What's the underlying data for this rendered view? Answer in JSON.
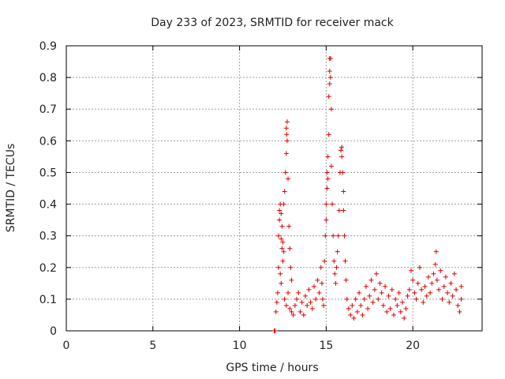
{
  "chart_data": {
    "type": "scatter",
    "title": "Day 233 of 2023, SRMTID for receiver mack",
    "xlabel": "GPS time / hours",
    "ylabel": "SRMTID / TECUs",
    "xlim": [
      0,
      24
    ],
    "ylim": [
      0,
      0.9
    ],
    "xticks": [
      0,
      5,
      10,
      15,
      20
    ],
    "yticks": [
      0,
      0.1,
      0.2,
      0.3,
      0.4,
      0.5,
      0.6,
      0.7,
      0.8,
      0.9
    ],
    "xtick_labels": [
      "0",
      "5",
      "10",
      "15",
      "20"
    ],
    "ytick_labels": [
      "0",
      "0.1",
      "0.2",
      "0.3",
      "0.4",
      "0.5",
      "0.6",
      "0.7",
      "0.8",
      "0.9"
    ],
    "grid": true,
    "marker": "+",
    "color": "#e00000",
    "series": [
      {
        "name": "SRMTID",
        "points": [
          [
            12.0,
            0.0
          ],
          [
            12.05,
            0.0
          ],
          [
            12.1,
            0.06
          ],
          [
            12.15,
            0.09
          ],
          [
            12.2,
            0.12
          ],
          [
            12.25,
            0.2
          ],
          [
            12.25,
            0.3
          ],
          [
            12.3,
            0.35
          ],
          [
            12.3,
            0.38
          ],
          [
            12.35,
            0.4
          ],
          [
            12.4,
            0.37
          ],
          [
            12.45,
            0.33
          ],
          [
            12.5,
            0.28
          ],
          [
            12.55,
            0.25
          ],
          [
            12.4,
            0.29
          ],
          [
            12.45,
            0.26
          ],
          [
            12.5,
            0.22
          ],
          [
            12.35,
            0.18
          ],
          [
            12.4,
            0.15
          ],
          [
            12.55,
            0.4
          ],
          [
            12.6,
            0.44
          ],
          [
            12.65,
            0.5
          ],
          [
            12.7,
            0.56
          ],
          [
            12.7,
            0.64
          ],
          [
            12.72,
            0.62
          ],
          [
            12.75,
            0.66
          ],
          [
            12.75,
            0.6
          ],
          [
            12.8,
            0.48
          ],
          [
            12.85,
            0.33
          ],
          [
            12.9,
            0.26
          ],
          [
            12.95,
            0.2
          ],
          [
            13.0,
            0.16
          ],
          [
            12.6,
            0.1
          ],
          [
            12.7,
            0.08
          ],
          [
            12.8,
            0.12
          ],
          [
            12.9,
            0.07
          ],
          [
            13.0,
            0.06
          ],
          [
            13.1,
            0.05
          ],
          [
            13.2,
            0.08
          ],
          [
            13.3,
            0.1
          ],
          [
            13.4,
            0.12
          ],
          [
            13.5,
            0.06
          ],
          [
            13.6,
            0.09
          ],
          [
            13.7,
            0.05
          ],
          [
            13.8,
            0.11
          ],
          [
            13.9,
            0.08
          ],
          [
            14.0,
            0.13
          ],
          [
            14.1,
            0.09
          ],
          [
            14.2,
            0.07
          ],
          [
            14.3,
            0.14
          ],
          [
            14.4,
            0.1
          ],
          [
            14.5,
            0.16
          ],
          [
            14.6,
            0.12
          ],
          [
            14.7,
            0.2
          ],
          [
            14.75,
            0.15
          ],
          [
            14.8,
            0.1
          ],
          [
            14.85,
            0.08
          ],
          [
            14.9,
            0.22
          ],
          [
            14.95,
            0.3
          ],
          [
            15.0,
            0.35
          ],
          [
            15.0,
            0.4
          ],
          [
            15.05,
            0.45
          ],
          [
            15.05,
            0.5
          ],
          [
            15.1,
            0.48
          ],
          [
            15.1,
            0.55
          ],
          [
            15.15,
            0.62
          ],
          [
            15.15,
            0.74
          ],
          [
            15.2,
            0.78
          ],
          [
            15.2,
            0.82
          ],
          [
            15.2,
            0.86
          ],
          [
            15.25,
            0.86
          ],
          [
            15.25,
            0.8
          ],
          [
            15.3,
            0.7
          ],
          [
            15.3,
            0.52
          ],
          [
            15.35,
            0.4
          ],
          [
            15.4,
            0.3
          ],
          [
            15.45,
            0.22
          ],
          [
            15.5,
            0.18
          ],
          [
            15.55,
            0.15
          ],
          [
            15.6,
            0.2
          ],
          [
            15.65,
            0.25
          ],
          [
            15.7,
            0.3
          ],
          [
            15.75,
            0.38
          ],
          [
            15.8,
            0.5
          ],
          [
            15.85,
            0.57
          ],
          [
            15.9,
            0.58
          ],
          [
            15.9,
            0.55
          ],
          [
            15.95,
            0.5
          ],
          [
            16.0,
            0.44
          ],
          [
            16.0,
            0.38
          ],
          [
            16.05,
            0.3
          ],
          [
            16.1,
            0.22
          ],
          [
            16.15,
            0.16
          ],
          [
            16.2,
            0.1
          ],
          [
            16.3,
            0.07
          ],
          [
            16.4,
            0.05
          ],
          [
            16.5,
            0.08
          ],
          [
            16.6,
            0.04
          ],
          [
            16.7,
            0.1
          ],
          [
            16.8,
            0.06
          ],
          [
            16.9,
            0.12
          ],
          [
            17.0,
            0.08
          ],
          [
            17.1,
            0.05
          ],
          [
            17.2,
            0.1
          ],
          [
            17.3,
            0.14
          ],
          [
            17.4,
            0.07
          ],
          [
            17.5,
            0.11
          ],
          [
            17.6,
            0.16
          ],
          [
            17.7,
            0.09
          ],
          [
            17.8,
            0.13
          ],
          [
            17.9,
            0.18
          ],
          [
            18.0,
            0.1
          ],
          [
            18.1,
            0.15
          ],
          [
            18.2,
            0.12
          ],
          [
            18.3,
            0.08
          ],
          [
            18.4,
            0.14
          ],
          [
            18.5,
            0.06
          ],
          [
            18.6,
            0.11
          ],
          [
            18.7,
            0.07
          ],
          [
            18.8,
            0.13
          ],
          [
            18.9,
            0.05
          ],
          [
            19.0,
            0.1
          ],
          [
            19.1,
            0.08
          ],
          [
            19.2,
            0.12
          ],
          [
            19.3,
            0.06
          ],
          [
            19.4,
            0.09
          ],
          [
            19.5,
            0.04
          ],
          [
            19.6,
            0.07
          ],
          [
            19.7,
            0.11
          ],
          [
            19.8,
            0.13
          ],
          [
            19.9,
            0.19
          ],
          [
            20.0,
            0.16
          ],
          [
            20.1,
            0.12
          ],
          [
            20.2,
            0.1
          ],
          [
            20.3,
            0.15
          ],
          [
            20.4,
            0.2
          ],
          [
            20.5,
            0.13
          ],
          [
            20.6,
            0.09
          ],
          [
            20.7,
            0.14
          ],
          [
            20.8,
            0.11
          ],
          [
            20.9,
            0.17
          ],
          [
            21.0,
            0.12
          ],
          [
            21.1,
            0.15
          ],
          [
            21.2,
            0.18
          ],
          [
            21.3,
            0.21
          ],
          [
            21.35,
            0.25
          ],
          [
            21.4,
            0.16
          ],
          [
            21.5,
            0.13
          ],
          [
            21.6,
            0.19
          ],
          [
            21.7,
            0.1
          ],
          [
            21.8,
            0.14
          ],
          [
            21.9,
            0.17
          ],
          [
            22.0,
            0.12
          ],
          [
            22.1,
            0.09
          ],
          [
            22.2,
            0.15
          ],
          [
            22.3,
            0.11
          ],
          [
            22.4,
            0.18
          ],
          [
            22.5,
            0.13
          ],
          [
            22.6,
            0.08
          ],
          [
            22.7,
            0.06
          ],
          [
            22.8,
            0.1
          ],
          [
            22.8,
            0.14
          ]
        ]
      }
    ]
  }
}
